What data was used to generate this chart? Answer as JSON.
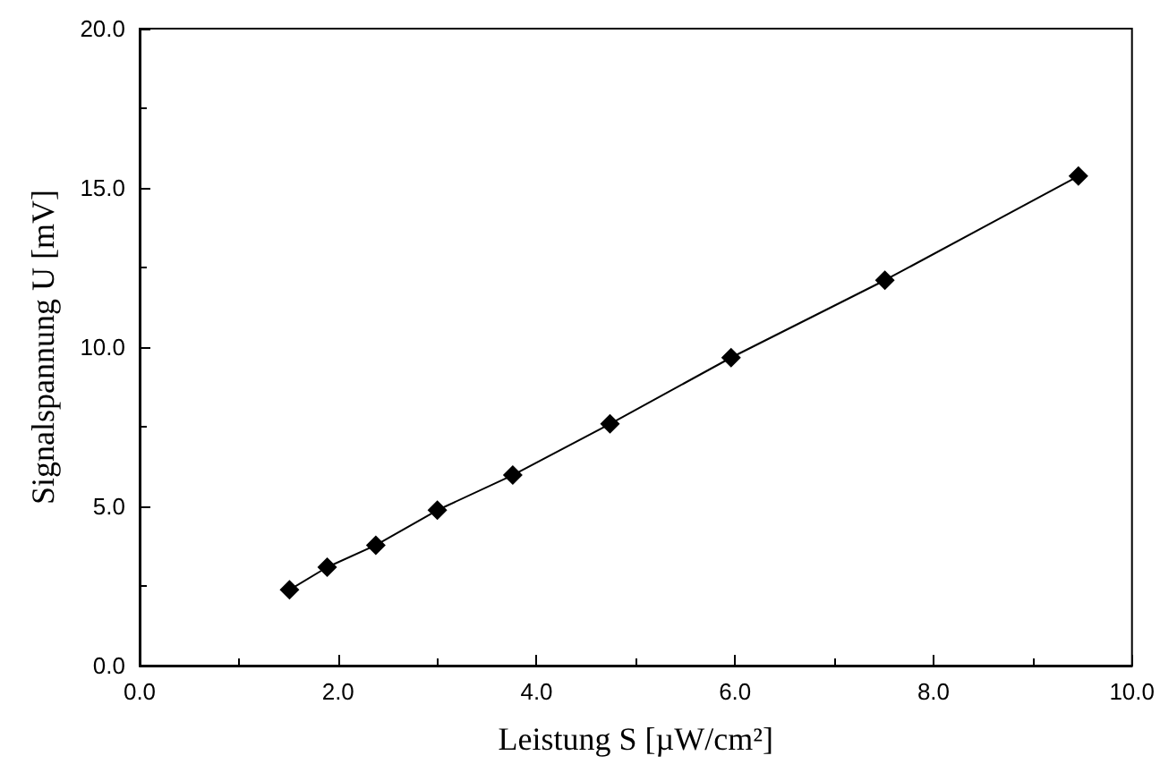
{
  "chart_data": {
    "type": "line",
    "xlabel": "Leistung S [µW/cm²]",
    "ylabel": "Signalspannung U [mV]",
    "x": [
      1.51,
      1.89,
      2.38,
      3.0,
      3.76,
      4.74,
      5.96,
      7.51,
      9.46
    ],
    "series": [
      {
        "color": "#000000",
        "values": [
          2.38,
          3.09,
          3.78,
          4.88,
          5.98,
          7.59,
          9.67,
          12.1,
          15.37
        ]
      }
    ],
    "xlim": [
      0,
      10
    ],
    "ylim": [
      0,
      20
    ],
    "xticks": [
      {
        "value": 0,
        "label": "0.0"
      },
      {
        "value": 2,
        "label": "2.0"
      },
      {
        "value": 4,
        "label": "4.0"
      },
      {
        "value": 6,
        "label": "6.0"
      },
      {
        "value": 8,
        "label": "8.0"
      },
      {
        "value": 10,
        "label": "10.0"
      }
    ],
    "yticks": [
      {
        "value": 0,
        "label": "0.0"
      },
      {
        "value": 5,
        "label": "5.0"
      },
      {
        "value": 10,
        "label": "10.0"
      },
      {
        "value": 15,
        "label": "15.0"
      },
      {
        "value": 20,
        "label": "20.0"
      }
    ],
    "marker": "diamond",
    "line_style": "solid",
    "grid": false
  }
}
